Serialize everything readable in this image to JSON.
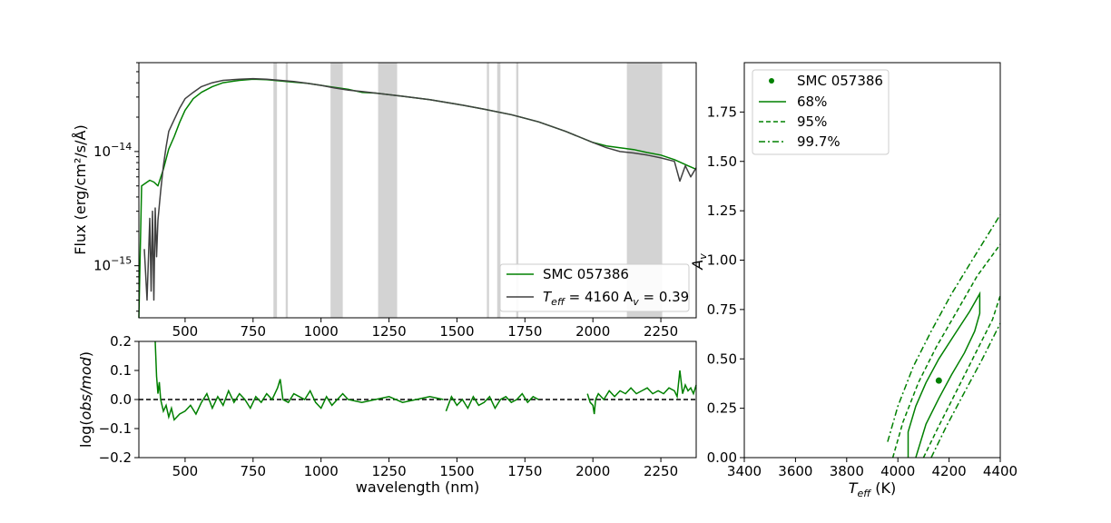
{
  "chart_data": [
    {
      "panel": "spectrum",
      "type": "line",
      "ylabel": "Flux (erg/cm²/s/Å)",
      "yscale": "log",
      "xlim": [
        330,
        2380
      ],
      "ylim": [
        3.5e-16,
        6e-14
      ],
      "xticks": [
        500,
        750,
        1000,
        1250,
        1500,
        1750,
        2000,
        2250
      ],
      "ytick_labels": [
        {
          "value": 1e-14,
          "base": "10",
          "exp": "−14"
        },
        {
          "value": 1e-15,
          "base": "10",
          "exp": "−15"
        }
      ],
      "masked_regions": [
        [
          825,
          838
        ],
        [
          870,
          878
        ],
        [
          1035,
          1080
        ],
        [
          1210,
          1280
        ],
        [
          1610,
          1618
        ],
        [
          1648,
          1660
        ],
        [
          1718,
          1726
        ],
        [
          2125,
          2255
        ]
      ],
      "series": [
        {
          "name": "SMC 057386",
          "color": "#008000",
          "x": [
            330,
            340,
            355,
            370,
            385,
            400,
            420,
            440,
            460,
            480,
            500,
            530,
            560,
            600,
            640,
            700,
            750,
            800,
            850,
            900,
            950,
            1000,
            1050,
            1100,
            1150,
            1200,
            1250,
            1300,
            1400,
            1500,
            1600,
            1700,
            1800,
            1900,
            2000,
            2050,
            2100,
            2150,
            2200,
            2250,
            2300,
            2350,
            2380
          ],
          "y": [
            3.5e-16,
            5e-15,
            5.3e-15,
            5.6e-15,
            5.4e-15,
            5e-15,
            7e-15,
            1.05e-14,
            1.35e-14,
            1.8e-14,
            2.3e-14,
            2.9e-14,
            3.3e-14,
            3.7e-14,
            4e-14,
            4.2e-14,
            4.3e-14,
            4.25e-14,
            4.15e-14,
            4.05e-14,
            3.95e-14,
            3.8e-14,
            3.65e-14,
            3.5e-14,
            3.3e-14,
            3.25e-14,
            3.15e-14,
            3.05e-14,
            2.85e-14,
            2.6e-14,
            2.35e-14,
            2.1e-14,
            1.82e-14,
            1.5e-14,
            1.2e-14,
            1.12e-14,
            1.08e-14,
            1.04e-14,
            9.8e-15,
            9.3e-15,
            8.5e-15,
            7.5e-15,
            7e-15
          ]
        },
        {
          "name_prefix": "T",
          "name_sub": "eff",
          "name_mid": " = 4160 A",
          "name_sub2": "v",
          "name_suffix": " = 0.39",
          "color": "#404040",
          "x": [
            350,
            360,
            370,
            375,
            380,
            385,
            390,
            395,
            400,
            410,
            420,
            430,
            440,
            460,
            480,
            500,
            530,
            560,
            600,
            640,
            700,
            750,
            800,
            850,
            900,
            950,
            1000,
            1050,
            1100,
            1150,
            1200,
            1250,
            1300,
            1400,
            1500,
            1600,
            1700,
            1800,
            1900,
            2000,
            2050,
            2100,
            2150,
            2200,
            2250,
            2300,
            2320,
            2340,
            2360,
            2380
          ],
          "y": [
            1.4e-15,
            5e-16,
            2.6e-15,
            6e-16,
            3e-15,
            5e-16,
            3.2e-15,
            1.2e-15,
            2.5e-15,
            4.5e-15,
            7.5e-15,
            1.1e-14,
            1.5e-14,
            1.9e-14,
            2.4e-14,
            2.9e-14,
            3.3e-14,
            3.7e-14,
            4e-14,
            4.2e-14,
            4.3e-14,
            4.35e-14,
            4.3e-14,
            4.2e-14,
            4.1e-14,
            3.95e-14,
            3.8e-14,
            3.6e-14,
            3.45e-14,
            3.35e-14,
            3.25e-14,
            3.15e-14,
            3.05e-14,
            2.85e-14,
            2.6e-14,
            2.35e-14,
            2.1e-14,
            1.82e-14,
            1.5e-14,
            1.2e-14,
            1.08e-14,
            1e-14,
            9.7e-15,
            9.3e-15,
            8.8e-15,
            8.2e-15,
            5.5e-15,
            7.5e-15,
            6e-15,
            7.2e-15
          ]
        }
      ],
      "legend": {
        "placement": "lower right"
      }
    },
    {
      "panel": "residual",
      "type": "line",
      "xlabel": "wavelength (nm)",
      "ylabel_prefix": "log(",
      "ylabel_italic": "obs/mod",
      "ylabel_suffix": ")",
      "xlim": [
        330,
        2380
      ],
      "ylim": [
        -0.2,
        0.2
      ],
      "xticks": [
        500,
        750,
        1000,
        1250,
        1500,
        1750,
        2000,
        2250
      ],
      "yticks": [
        0.2,
        0.1,
        0.0,
        -0.1,
        -0.2
      ],
      "ytick_labels": [
        "0.2",
        "0.1",
        "0.0",
        "−0.1",
        "−0.2"
      ],
      "reference_line": 0.0,
      "series_color": "#008000",
      "segments": [
        {
          "x": [
            390,
            395,
            400,
            405,
            410,
            420,
            430,
            440,
            450,
            460,
            480,
            500,
            520,
            540,
            560,
            580,
            600,
            620,
            640,
            660,
            680,
            700,
            720,
            740,
            760,
            780,
            800,
            820,
            840,
            850,
            860,
            880,
            900,
            920,
            940,
            960,
            980,
            1000,
            1020,
            1040,
            1060,
            1080,
            1100,
            1150,
            1200,
            1250,
            1300,
            1350,
            1400,
            1450
          ],
          "y": [
            0.2,
            0.08,
            0.02,
            0.06,
            0.0,
            -0.04,
            -0.02,
            -0.06,
            -0.03,
            -0.07,
            -0.05,
            -0.04,
            -0.02,
            -0.05,
            -0.01,
            0.02,
            -0.03,
            0.01,
            -0.02,
            0.03,
            -0.01,
            0.02,
            0.0,
            -0.03,
            0.01,
            -0.01,
            0.02,
            0.0,
            0.04,
            0.07,
            0.0,
            -0.01,
            0.02,
            0.01,
            0.0,
            0.03,
            -0.01,
            -0.03,
            0.01,
            -0.02,
            0.0,
            0.02,
            0.0,
            -0.01,
            0.0,
            0.01,
            -0.01,
            0.0,
            0.01,
            0.0
          ]
        },
        {
          "x": [
            1460,
            1480,
            1500,
            1520,
            1540,
            1560,
            1580,
            1600,
            1620,
            1640,
            1660,
            1680,
            1700,
            1720,
            1740,
            1760,
            1780,
            1800
          ],
          "y": [
            -0.04,
            0.01,
            -0.02,
            0.0,
            -0.03,
            0.01,
            -0.02,
            -0.01,
            0.01,
            -0.03,
            0.0,
            0.01,
            -0.01,
            0.0,
            0.02,
            -0.01,
            0.01,
            0.0
          ]
        },
        {
          "x": [
            1980,
            1990,
            2000,
            2005,
            2010,
            2020,
            2040,
            2060,
            2080,
            2100,
            2120,
            2140,
            2160,
            2180,
            2200,
            2220,
            2240,
            2260,
            2280,
            2300,
            2310,
            2320,
            2330,
            2340,
            2350,
            2360,
            2370,
            2380
          ],
          "y": [
            0.02,
            -0.01,
            -0.02,
            -0.05,
            0.0,
            0.02,
            0.0,
            0.03,
            0.01,
            0.03,
            0.02,
            0.04,
            0.02,
            0.03,
            0.04,
            0.02,
            0.03,
            0.02,
            0.04,
            0.03,
            0.01,
            0.1,
            0.02,
            0.05,
            0.03,
            0.04,
            0.02,
            0.05
          ]
        }
      ]
    },
    {
      "panel": "contours",
      "type": "scatter",
      "xlabel_main": "T",
      "xlabel_sub": "eff",
      "xlabel_suffix": " (K)",
      "ylabel_main": "A",
      "ylabel_sub": "v",
      "xlim": [
        3400,
        4400
      ],
      "ylim": [
        0,
        2.0
      ],
      "xticks": [
        3400,
        3600,
        3800,
        4000,
        4200,
        4400
      ],
      "yticks": [
        0.0,
        0.25,
        0.5,
        0.75,
        1.0,
        1.25,
        1.5,
        1.75
      ],
      "ytick_labels": [
        "0.00",
        "0.25",
        "0.50",
        "0.75",
        "1.00",
        "1.25",
        "1.50",
        "1.75"
      ],
      "color": "#008000",
      "point": {
        "label": "SMC 057386",
        "x": 4160,
        "y": 0.39
      },
      "contours": [
        {
          "label": "68%",
          "style": "solid",
          "x": [
            4040,
            4040,
            4070,
            4110,
            4160,
            4220,
            4280,
            4320,
            4320,
            4300,
            4260,
            4210,
            4160,
            4110,
            4070
          ],
          "y": [
            0.0,
            0.13,
            0.26,
            0.38,
            0.5,
            0.62,
            0.74,
            0.83,
            0.73,
            0.64,
            0.53,
            0.42,
            0.3,
            0.17,
            0.0
          ]
        },
        {
          "label": "95%",
          "style": "dashed",
          "x1": [
            3980,
            4020,
            4080,
            4150,
            4230,
            4310,
            4400
          ],
          "y1": [
            0.0,
            0.18,
            0.38,
            0.56,
            0.74,
            0.92,
            1.08
          ],
          "x2": [
            4100,
            4160,
            4230,
            4300,
            4370,
            4400
          ],
          "y2": [
            0.0,
            0.16,
            0.34,
            0.52,
            0.7,
            0.82
          ]
        },
        {
          "label": "99.7%",
          "style": "dashdot",
          "x1": [
            3960,
            4000,
            4060,
            4130,
            4210,
            4300,
            4400
          ],
          "y1": [
            0.08,
            0.26,
            0.46,
            0.64,
            0.83,
            1.02,
            1.23
          ],
          "x2": [
            4130,
            4190,
            4260,
            4330,
            4400
          ],
          "y2": [
            0.0,
            0.16,
            0.33,
            0.5,
            0.68
          ]
        }
      ],
      "legend": {
        "placement": "upper left"
      }
    }
  ]
}
